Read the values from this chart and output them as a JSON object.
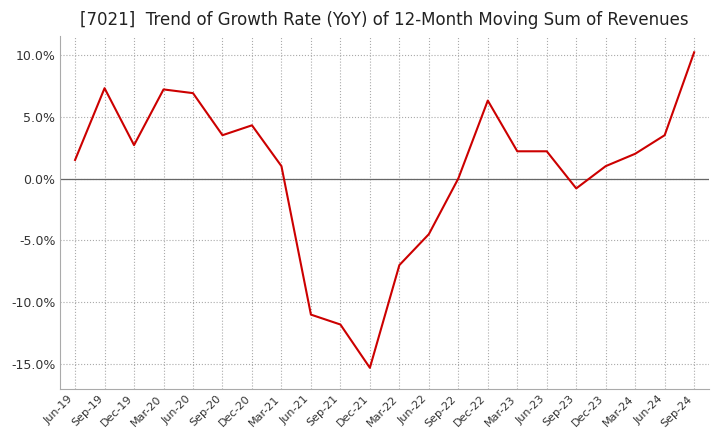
{
  "title": "[7021]  Trend of Growth Rate (YoY) of 12-Month Moving Sum of Revenues",
  "title_fontsize": 12,
  "line_color": "#cc0000",
  "background_color": "#ffffff",
  "plot_bg_color": "#ffffff",
  "ylim": [
    -0.17,
    0.115
  ],
  "yticks": [
    -0.15,
    -0.1,
    -0.05,
    0.0,
    0.05,
    0.1
  ],
  "x_labels": [
    "Jun-19",
    "Sep-19",
    "Dec-19",
    "Mar-20",
    "Jun-20",
    "Sep-20",
    "Dec-20",
    "Mar-21",
    "Jun-21",
    "Sep-21",
    "Dec-21",
    "Mar-22",
    "Jun-22",
    "Sep-22",
    "Dec-22",
    "Mar-23",
    "Jun-23",
    "Sep-23",
    "Dec-23",
    "Mar-24",
    "Jun-24",
    "Sep-24"
  ],
  "y_values": [
    0.015,
    0.073,
    0.027,
    0.072,
    0.069,
    0.035,
    0.043,
    0.01,
    -0.11,
    -0.118,
    -0.153,
    -0.07,
    -0.045,
    0.0,
    0.063,
    0.022,
    0.022,
    -0.008,
    0.01,
    0.02,
    0.035,
    0.102
  ]
}
